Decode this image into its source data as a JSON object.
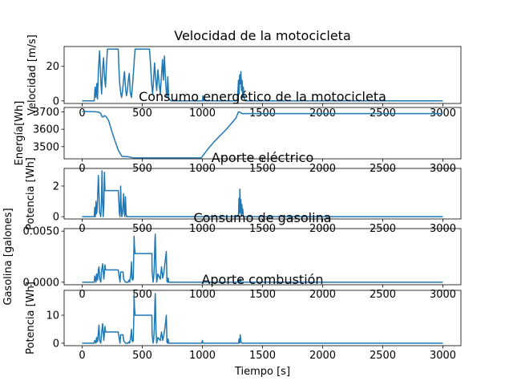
{
  "figure": {
    "xlabel": "Tiempo [s]",
    "x_range": [
      -150,
      3150
    ],
    "x_ticks": [
      0,
      500,
      1000,
      1500,
      2000,
      2500,
      3000
    ],
    "x_tick_labels": [
      "0",
      "500",
      "1000",
      "1500",
      "2000",
      "2500",
      "3000"
    ],
    "line_color": "#1f77b4"
  },
  "chart_data": [
    {
      "type": "line",
      "title": "Velocidad de la motocicleta",
      "ylabel": "Velocidad [m/s]",
      "ylim": [
        -1.5,
        31.5
      ],
      "yticks": [
        0,
        20
      ],
      "ytick_labels": [
        "0",
        "20"
      ],
      "series": [
        {
          "x": [
            0,
            100,
            108,
            115,
            122,
            128,
            135,
            145,
            155,
            162,
            170,
            178,
            186,
            194,
            202,
            210,
            220,
            300,
            305,
            312,
            320,
            328,
            336,
            344,
            352,
            360,
            368,
            376,
            384,
            392,
            400,
            410,
            420,
            430,
            440,
            560,
            570,
            578,
            586,
            594,
            602,
            610,
            620,
            630,
            640,
            650,
            660,
            668,
            676,
            684,
            692,
            700,
            706,
            712,
            720,
            740,
            1000,
            1004,
            1008,
            1012,
            1016,
            1290,
            1295,
            1300,
            1305,
            1310,
            1315,
            1320,
            1325,
            1330,
            1335,
            1340,
            1345,
            1350,
            1360,
            1380,
            1500,
            2000,
            2500,
            3000
          ],
          "y": [
            0,
            0,
            8,
            2,
            10,
            1,
            18,
            29,
            12,
            4,
            18,
            25,
            14,
            8,
            20,
            30,
            30,
            30,
            20,
            10,
            5,
            2,
            6,
            12,
            17,
            8,
            3,
            6,
            12,
            16,
            5,
            2,
            10,
            20,
            30,
            30,
            20,
            10,
            4,
            12,
            22,
            14,
            6,
            18,
            10,
            4,
            15,
            24,
            12,
            26,
            14,
            5,
            2,
            14,
            1,
            0,
            0,
            3,
            0,
            2,
            0,
            0,
            5,
            12,
            4,
            15,
            10,
            17,
            6,
            12,
            2,
            8,
            3,
            1,
            0,
            0,
            0,
            0,
            0,
            0
          ]
        }
      ]
    },
    {
      "type": "line",
      "title": "Consumo energético de la motocicleta",
      "ylabel": "Energía[Wh]",
      "ylim": [
        3430,
        3725
      ],
      "yticks": [
        3500,
        3600,
        3700
      ],
      "ytick_labels": [
        "3500",
        "3600",
        "3700"
      ],
      "series": [
        {
          "x": [
            0,
            100,
            140,
            155,
            165,
            175,
            185,
            200,
            220,
            250,
            300,
            330,
            350,
            380,
            420,
            450,
            500,
            800,
            990,
            1050,
            1100,
            1200,
            1280,
            1300,
            1315,
            1330,
            1500,
            2000,
            2500,
            3000
          ],
          "y": [
            3702,
            3701,
            3698,
            3690,
            3672,
            3671,
            3678,
            3672,
            3650,
            3580,
            3480,
            3445,
            3443,
            3442,
            3436,
            3435,
            3435,
            3435,
            3435,
            3490,
            3530,
            3600,
            3665,
            3700,
            3697,
            3690,
            3690,
            3690,
            3690,
            3690
          ]
        }
      ]
    },
    {
      "type": "line",
      "title": "Aporte eléctrico",
      "ylabel": "Potencia [Wh]",
      "ylim": [
        -0.15,
        3.15
      ],
      "yticks": [
        0,
        2
      ],
      "ytick_labels": [
        "0",
        "2"
      ],
      "series": [
        {
          "x": [
            0,
            100,
            105,
            110,
            115,
            120,
            125,
            135,
            145,
            155,
            160,
            165,
            170,
            175,
            180,
            185,
            190,
            195,
            205,
            210,
            215,
            300,
            305,
            310,
            315,
            320,
            325,
            330,
            335,
            340,
            345,
            350,
            355,
            360,
            365,
            370,
            380,
            390,
            400,
            420,
            1300,
            1304,
            1308,
            1312,
            1316,
            1320,
            1324,
            1328,
            1332,
            1336,
            1340,
            1350,
            1500,
            2000,
            2500,
            3000
          ],
          "y": [
            0,
            0,
            0.6,
            0,
            1.0,
            0.2,
            0.5,
            2.7,
            0.3,
            0,
            0.8,
            3.0,
            1.2,
            0,
            0.6,
            2.9,
            1.7,
            1.7,
            1.7,
            1.7,
            1.7,
            1.7,
            1.0,
            0.2,
            0,
            2.0,
            0.6,
            0,
            0.2,
            0.8,
            1.5,
            0.3,
            0,
            1.3,
            0.2,
            0,
            0,
            0,
            0,
            0,
            0,
            1.2,
            0.2,
            1.8,
            0.3,
            1.1,
            0,
            0.8,
            0.2,
            0.5,
            0,
            0,
            0,
            0,
            0,
            0
          ]
        }
      ]
    },
    {
      "type": "line",
      "title": "Consumo de gasolina",
      "ylabel": "Gasolina [galones]",
      "ylim": [
        -0.00025,
        0.00525
      ],
      "yticks": [
        0.0,
        0.005
      ],
      "ytick_labels": [
        "0.0000",
        "0.0050"
      ],
      "series": [
        {
          "x": [
            0,
            100,
            105,
            115,
            120,
            128,
            135,
            140,
            145,
            155,
            160,
            170,
            180,
            185,
            190,
            195,
            200,
            210,
            220,
            300,
            305,
            315,
            320,
            340,
            345,
            355,
            360,
            380,
            390,
            395,
            405,
            410,
            415,
            420,
            425,
            430,
            432,
            435,
            440,
            450,
            580,
            582,
            590,
            595,
            600,
            605,
            608,
            612,
            615,
            620,
            630,
            650,
            660,
            670,
            680,
            690,
            700,
            705,
            710,
            715,
            720,
            730,
            1000,
            1300,
            1305,
            1310,
            1315,
            1320,
            1330,
            1340,
            1500,
            2000,
            2500,
            3000
          ],
          "y": [
            0,
            0,
            0.0006,
            0,
            0.0008,
            0.0002,
            0.0012,
            0.0015,
            0.0004,
            0,
            0.001,
            0.0018,
            0.0003,
            0.001,
            0.0017,
            0.0012,
            0.0012,
            0.0012,
            0.0012,
            0.0012,
            0.0008,
            0,
            0.001,
            0.001,
            0.0003,
            0.0001,
            0,
            0,
            0.0002,
            0,
            0.0008,
            0.002,
            0.0003,
            0.0002,
            0.0004,
            0.003,
            0.0045,
            0.0035,
            0.0028,
            0.0028,
            0.0028,
            0.001,
            0,
            0.0005,
            0.0015,
            0.004,
            0.0047,
            0.0025,
            0.0012,
            0,
            0.0008,
            0.0003,
            0.0015,
            0.0004,
            0.001,
            0.002,
            0.003,
            0.0001,
            0,
            0.0004,
            0,
            0,
            0,
            0,
            0.0002,
            0,
            0.0003,
            0,
            0,
            0,
            0,
            0,
            0,
            0
          ]
        }
      ]
    },
    {
      "type": "line",
      "title": "Aporte combustión",
      "ylabel": "Potencia [Wh]",
      "ylim": [
        -0.9,
        18.9
      ],
      "yticks": [
        0,
        10
      ],
      "ytick_labels": [
        "0",
        "10"
      ],
      "series": [
        {
          "x": [
            0,
            100,
            105,
            115,
            120,
            128,
            135,
            140,
            145,
            155,
            160,
            170,
            180,
            185,
            190,
            195,
            200,
            210,
            220,
            300,
            305,
            315,
            320,
            340,
            345,
            355,
            360,
            380,
            390,
            395,
            405,
            410,
            415,
            420,
            425,
            430,
            432,
            435,
            440,
            450,
            580,
            582,
            590,
            595,
            600,
            605,
            608,
            612,
            615,
            620,
            630,
            650,
            660,
            670,
            680,
            690,
            700,
            705,
            710,
            715,
            720,
            730,
            995,
            1000,
            1005,
            1010,
            1300,
            1305,
            1310,
            1315,
            1320,
            1330,
            1340,
            1500,
            2000,
            2500,
            3000
          ],
          "y": [
            0,
            0,
            1.0,
            0,
            2.0,
            0.5,
            4.0,
            6.5,
            1.0,
            0,
            3.0,
            7.0,
            1.0,
            3.5,
            6.0,
            4.0,
            4.0,
            4.0,
            4.0,
            4.0,
            2.5,
            0,
            3.0,
            3.0,
            1.0,
            0.3,
            0,
            0,
            0.5,
            0,
            2.5,
            5.0,
            1.0,
            0.5,
            1.0,
            10.0,
            17.5,
            13.0,
            10.0,
            10.0,
            10.0,
            3.0,
            0,
            1.5,
            5.0,
            14.0,
            17.8,
            9.0,
            4.0,
            0,
            2.0,
            1.0,
            4.0,
            1.0,
            3.0,
            6.0,
            10.0,
            0.5,
            0,
            1.5,
            0,
            0,
            0,
            1.0,
            0,
            0,
            0,
            1.5,
            0,
            3.0,
            0.5,
            0,
            0,
            0,
            0,
            0,
            0
          ]
        }
      ]
    }
  ]
}
